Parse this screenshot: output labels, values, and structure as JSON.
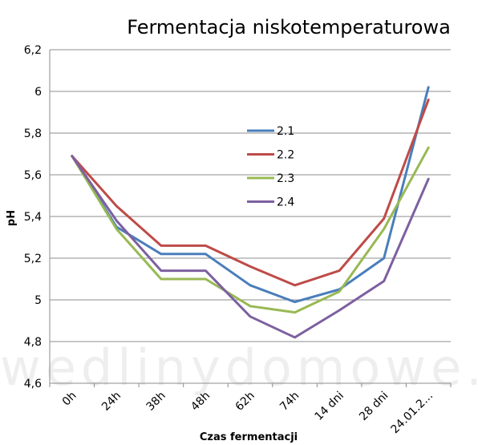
{
  "watermark": "wedlinydomowe.pl",
  "chart_data": {
    "type": "line",
    "title": "Fermentacja niskotemperaturowa",
    "xlabel": "Czas fermentacji",
    "ylabel": "pH",
    "categories": [
      "0h",
      "24h",
      "38h",
      "48h",
      "62h",
      "74h",
      "14 dni",
      "28 dni",
      "24.01.2..."
    ],
    "ylim": [
      4.6,
      6.2
    ],
    "yticks": [
      "4,6",
      "4,8",
      "5",
      "5,2",
      "5,4",
      "5,6",
      "5,8",
      "6",
      "6,2"
    ],
    "grid": true,
    "legend_position": "center",
    "series": [
      {
        "name": "2.1",
        "color": "#4a7ebb",
        "values": [
          5.69,
          5.35,
          5.22,
          5.22,
          5.07,
          4.99,
          5.05,
          5.2,
          6.02
        ]
      },
      {
        "name": "2.2",
        "color": "#be4b48",
        "values": [
          5.69,
          5.45,
          5.26,
          5.26,
          5.16,
          5.07,
          5.14,
          5.39,
          5.96
        ]
      },
      {
        "name": "2.3",
        "color": "#98b954",
        "values": [
          5.69,
          5.34,
          5.1,
          5.1,
          4.97,
          4.94,
          5.04,
          5.34,
          5.73
        ]
      },
      {
        "name": "2.4",
        "color": "#7d60a0",
        "values": [
          5.69,
          5.38,
          5.14,
          5.14,
          4.92,
          4.82,
          4.95,
          5.09,
          5.58
        ]
      }
    ]
  }
}
